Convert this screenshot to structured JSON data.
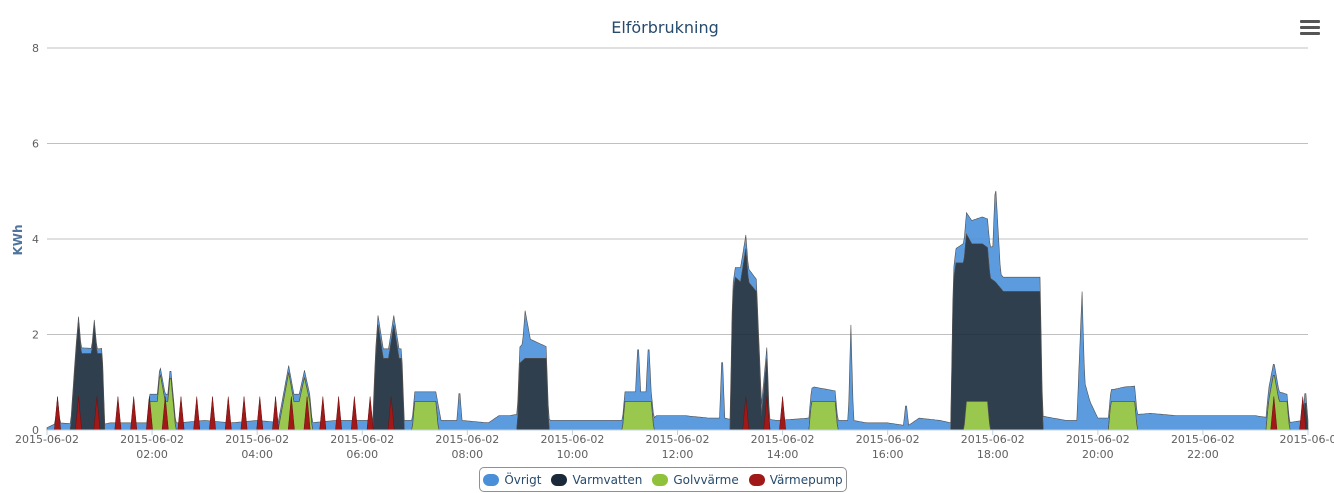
{
  "chart_data": {
    "type": "area",
    "stacked": true,
    "title": "Elförbrukning",
    "ylabel": "KWh",
    "xlabel": "",
    "ylim": [
      0,
      8
    ],
    "yticks": [
      0,
      2,
      4,
      6,
      8
    ],
    "grid": true,
    "legend_position": "bottom-center",
    "x_unit": "hours since 2015-06-02 00:00",
    "x_range": [
      0,
      24
    ],
    "xticks": [
      {
        "x": 0,
        "date": "2015-06-02",
        "time": ""
      },
      {
        "x": 2,
        "date": "2015-06-02",
        "time": "02:00"
      },
      {
        "x": 4,
        "date": "2015-06-02",
        "time": "04:00"
      },
      {
        "x": 6,
        "date": "2015-06-02",
        "time": "06:00"
      },
      {
        "x": 8,
        "date": "2015-06-02",
        "time": "08:00"
      },
      {
        "x": 10,
        "date": "2015-06-02",
        "time": "10:00"
      },
      {
        "x": 12,
        "date": "2015-06-02",
        "time": "12:00"
      },
      {
        "x": 14,
        "date": "2015-06-02",
        "time": "14:00"
      },
      {
        "x": 16,
        "date": "2015-06-02",
        "time": "16:00"
      },
      {
        "x": 18,
        "date": "2015-06-02",
        "time": "18:00"
      },
      {
        "x": 20,
        "date": "2015-06-02",
        "time": "20:00"
      },
      {
        "x": 22,
        "date": "2015-06-02",
        "time": "22:00"
      },
      {
        "x": 24,
        "date": "2015-06-0",
        "time": ""
      }
    ],
    "series": [
      {
        "name": "Övrigt",
        "color": "#4a90d9",
        "points": [
          [
            0,
            0.05
          ],
          [
            0.2,
            0.15
          ],
          [
            1.0,
            0.1
          ],
          [
            1.2,
            0.15
          ],
          [
            2.0,
            0.15
          ],
          [
            2.5,
            0.15
          ],
          [
            3.0,
            0.2
          ],
          [
            3.5,
            0.15
          ],
          [
            4.0,
            0.2
          ],
          [
            4.5,
            0.15
          ],
          [
            5.0,
            0.15
          ],
          [
            5.5,
            0.2
          ],
          [
            6.0,
            0.2
          ],
          [
            6.4,
            0.2
          ],
          [
            6.95,
            0.2
          ],
          [
            7.0,
            0.2
          ],
          [
            7.4,
            0.2
          ],
          [
            7.45,
            0.5
          ],
          [
            7.5,
            0.2
          ],
          [
            7.8,
            0.2
          ],
          [
            7.85,
            0.9
          ],
          [
            7.9,
            0.2
          ],
          [
            8.4,
            0.15
          ],
          [
            8.6,
            0.3
          ],
          [
            8.8,
            0.3
          ],
          [
            9.05,
            0.35
          ],
          [
            9.1,
            1.0
          ],
          [
            9.2,
            0.4
          ],
          [
            9.6,
            0.2
          ],
          [
            10.5,
            0.2
          ],
          [
            11.2,
            0.2
          ],
          [
            11.25,
            1.3
          ],
          [
            11.3,
            0.2
          ],
          [
            11.4,
            0.2
          ],
          [
            11.45,
            1.3
          ],
          [
            11.5,
            0.2
          ],
          [
            11.6,
            0.3
          ],
          [
            12.0,
            0.3
          ],
          [
            12.1,
            0.3
          ],
          [
            12.15,
            0.3
          ],
          [
            12.6,
            0.25
          ],
          [
            12.8,
            0.25
          ],
          [
            12.85,
            1.7
          ],
          [
            12.9,
            0.25
          ],
          [
            13.1,
            0.2
          ],
          [
            13.2,
            0.3
          ],
          [
            13.9,
            0.2
          ],
          [
            14.5,
            0.25
          ],
          [
            14.6,
            0.3
          ],
          [
            15.1,
            0.2
          ],
          [
            15.25,
            0.2
          ],
          [
            15.3,
            2.2
          ],
          [
            15.35,
            0.2
          ],
          [
            15.6,
            0.15
          ],
          [
            16.0,
            0.15
          ],
          [
            16.3,
            0.1
          ],
          [
            16.35,
            0.6
          ],
          [
            16.4,
            0.1
          ],
          [
            16.6,
            0.25
          ],
          [
            17.0,
            0.2
          ],
          [
            17.2,
            0.15
          ],
          [
            17.3,
            0.3
          ],
          [
            17.5,
            0.45
          ],
          [
            17.9,
            0.6
          ],
          [
            18.0,
            0.7
          ],
          [
            18.05,
            2.1
          ],
          [
            18.15,
            0.3
          ],
          [
            18.3,
            0.3
          ],
          [
            18.9,
            0.3
          ],
          [
            19.4,
            0.2
          ],
          [
            19.6,
            0.2
          ],
          [
            19.7,
            2.9
          ],
          [
            19.75,
            1.0
          ],
          [
            19.85,
            0.6
          ],
          [
            20.0,
            0.25
          ],
          [
            20.3,
            0.25
          ],
          [
            20.5,
            0.3
          ],
          [
            21.0,
            0.35
          ],
          [
            21.5,
            0.3
          ],
          [
            22.0,
            0.3
          ],
          [
            22.5,
            0.3
          ],
          [
            23.0,
            0.3
          ],
          [
            23.3,
            0.25
          ],
          [
            23.6,
            0.15
          ],
          [
            23.9,
            0.2
          ],
          [
            24,
            0.2
          ]
        ]
      },
      {
        "name": "Varmvatten",
        "color": "#1a2a3a",
        "points": [
          [
            0,
            0
          ],
          [
            0.15,
            0
          ],
          [
            0.2,
            0.5
          ],
          [
            0.25,
            0
          ],
          [
            0.45,
            0
          ],
          [
            0.55,
            1.6
          ],
          [
            0.6,
            2.25
          ],
          [
            0.65,
            1.6
          ],
          [
            0.75,
            1.6
          ],
          [
            0.85,
            1.6
          ],
          [
            0.9,
            2.2
          ],
          [
            0.95,
            1.6
          ],
          [
            1.05,
            1.6
          ],
          [
            1.1,
            0
          ],
          [
            6.2,
            0
          ],
          [
            6.25,
            1.4
          ],
          [
            6.3,
            2.2
          ],
          [
            6.4,
            1.5
          ],
          [
            6.5,
            1.5
          ],
          [
            6.6,
            2.2
          ],
          [
            6.7,
            1.5
          ],
          [
            6.75,
            1.5
          ],
          [
            6.8,
            0
          ],
          [
            8.95,
            0
          ],
          [
            9.0,
            1.4
          ],
          [
            9.1,
            1.5
          ],
          [
            9.3,
            1.5
          ],
          [
            9.5,
            1.5
          ],
          [
            9.55,
            0
          ],
          [
            13.0,
            0
          ],
          [
            13.05,
            2.8
          ],
          [
            13.1,
            3.2
          ],
          [
            13.2,
            3.1
          ],
          [
            13.3,
            3.8
          ],
          [
            13.35,
            3.1
          ],
          [
            13.5,
            2.9
          ],
          [
            13.6,
            0.3
          ],
          [
            13.7,
            1.5
          ],
          [
            13.75,
            0
          ],
          [
            17.2,
            0
          ],
          [
            17.25,
            3.1
          ],
          [
            17.3,
            3.5
          ],
          [
            17.5,
            3.5
          ],
          [
            17.6,
            3.3
          ],
          [
            17.8,
            3.3
          ],
          [
            18.05,
            3.1
          ],
          [
            18.2,
            2.9
          ],
          [
            18.8,
            2.9
          ],
          [
            18.9,
            2.9
          ],
          [
            18.95,
            0
          ],
          [
            23.9,
            0
          ],
          [
            23.95,
            0.7
          ],
          [
            24,
            0
          ]
        ]
      },
      {
        "name": "Golvvärme",
        "color": "#8fc13a",
        "points": [
          [
            0,
            0
          ],
          [
            1.9,
            0
          ],
          [
            1.95,
            0.6
          ],
          [
            2.1,
            0.6
          ],
          [
            2.15,
            1.2
          ],
          [
            2.25,
            0.6
          ],
          [
            2.3,
            0.6
          ],
          [
            2.35,
            1.2
          ],
          [
            2.4,
            0.6
          ],
          [
            2.45,
            0
          ],
          [
            4.4,
            0
          ],
          [
            4.5,
            0.6
          ],
          [
            4.6,
            1.2
          ],
          [
            4.7,
            0.6
          ],
          [
            4.8,
            0.6
          ],
          [
            4.9,
            1.1
          ],
          [
            5.0,
            0.6
          ],
          [
            5.05,
            0
          ],
          [
            6.95,
            0
          ],
          [
            7.0,
            0.6
          ],
          [
            7.4,
            0.6
          ],
          [
            7.45,
            0
          ],
          [
            10.95,
            0
          ],
          [
            11.0,
            0.6
          ],
          [
            11.5,
            0.6
          ],
          [
            11.55,
            0
          ],
          [
            14.5,
            0
          ],
          [
            14.55,
            0.6
          ],
          [
            15.0,
            0.6
          ],
          [
            15.05,
            0
          ],
          [
            17.45,
            0
          ],
          [
            17.5,
            0.6
          ],
          [
            17.9,
            0.6
          ],
          [
            17.95,
            0
          ],
          [
            20.2,
            0
          ],
          [
            20.25,
            0.6
          ],
          [
            20.7,
            0.6
          ],
          [
            20.75,
            0
          ],
          [
            23.2,
            0
          ],
          [
            23.25,
            0.6
          ],
          [
            23.35,
            1.2
          ],
          [
            23.45,
            0.6
          ],
          [
            23.6,
            0.6
          ],
          [
            23.65,
            0
          ],
          [
            24,
            0
          ]
        ]
      },
      {
        "name": "Värmepump",
        "color": "#a01818",
        "spikes": {
          "height": 0.7,
          "width": 0.12,
          "x": [
            0.2,
            0.6,
            0.95,
            1.35,
            1.65,
            1.95,
            2.25,
            2.55,
            2.85,
            3.15,
            3.45,
            3.75,
            4.05,
            4.35,
            4.65,
            4.95,
            5.25,
            5.55,
            5.85,
            6.15,
            6.55,
            13.3,
            13.7,
            14.0,
            23.35,
            23.9
          ]
        }
      }
    ]
  }
}
